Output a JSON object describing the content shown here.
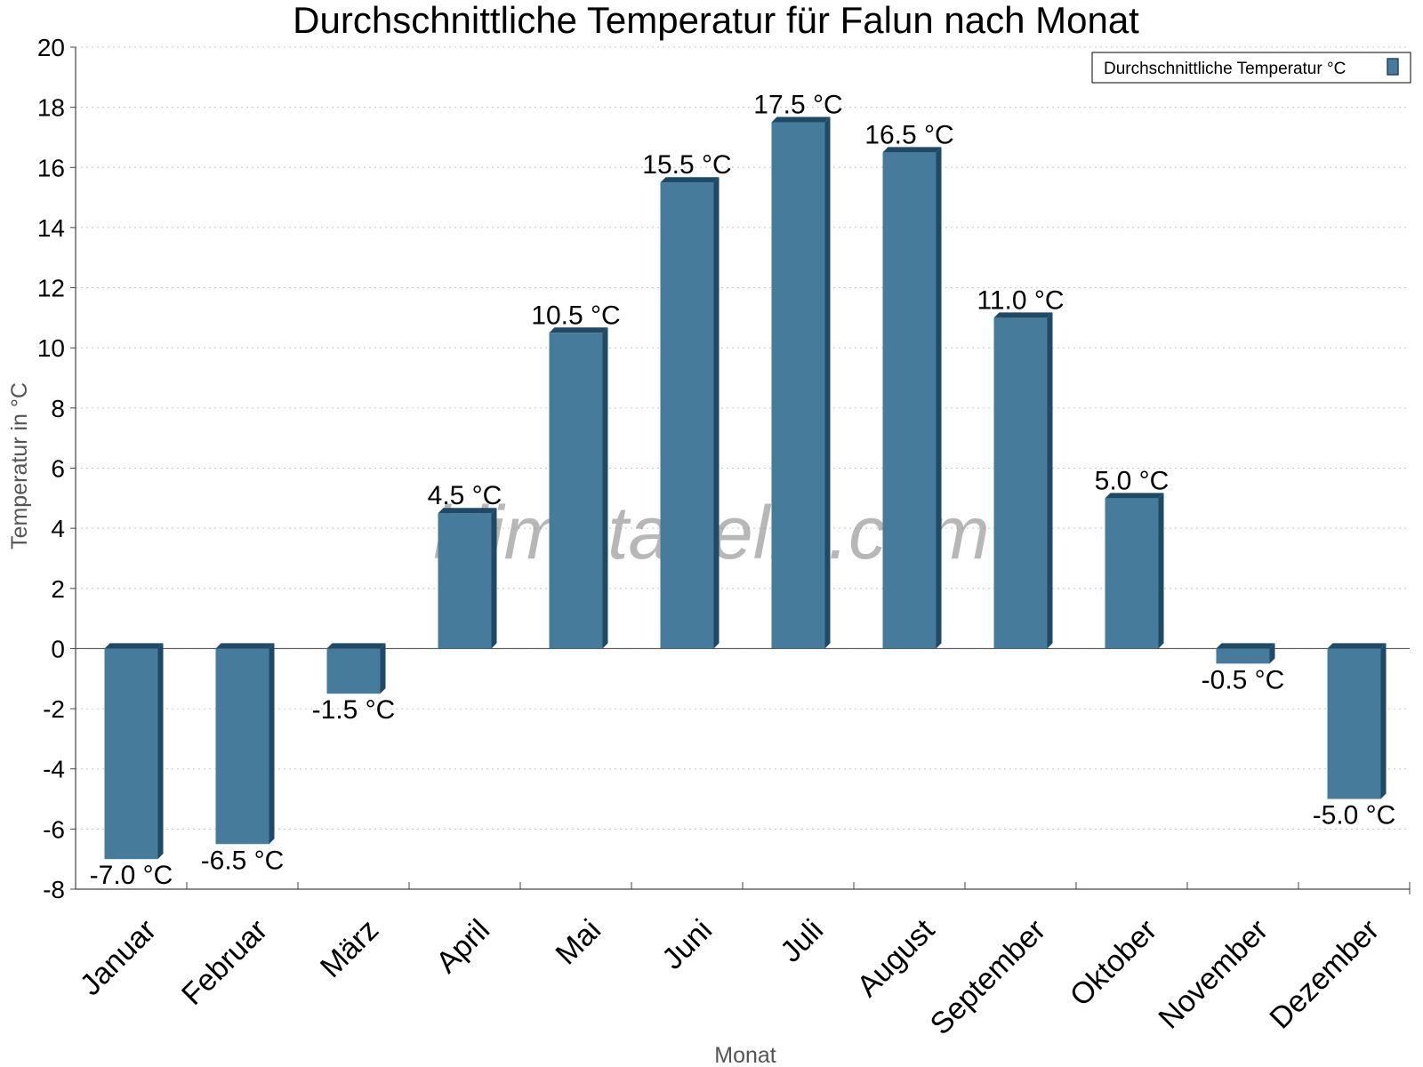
{
  "chart_data": {
    "type": "bar",
    "title": "Durchschnittliche Temperatur für Falun nach Monat",
    "xlabel": "Monat",
    "ylabel": "Temperatur in °C",
    "ylim": [
      -8,
      20
    ],
    "yticks": [
      20,
      18,
      16,
      14,
      12,
      10,
      8,
      6,
      4,
      2,
      0,
      -2,
      -4,
      -6,
      -8
    ],
    "grid": true,
    "legend_position": "top-right",
    "categories": [
      "Januar",
      "Februar",
      "März",
      "April",
      "Mai",
      "Juni",
      "Juli",
      "August",
      "September",
      "Oktober",
      "November",
      "Dezember"
    ],
    "series": [
      {
        "name": "Durchschnittliche Temperatur °C",
        "color": "#467b9c",
        "side_color": "#1e4a68",
        "values": [
          -7.0,
          -6.5,
          -1.5,
          4.5,
          10.5,
          15.5,
          17.5,
          16.5,
          11.0,
          5.0,
          -0.5,
          -5.0
        ],
        "labels": [
          "-7.0 °C",
          "-6.5 °C",
          "-1.5 °C",
          "4.5 °C",
          "10.5 °C",
          "15.5 °C",
          "17.5 °C",
          "16.5 °C",
          "11.0 °C",
          "5.0 °C",
          "-0.5 °C",
          "-5.0 °C"
        ]
      }
    ]
  },
  "watermark": "klimatabelle.com"
}
